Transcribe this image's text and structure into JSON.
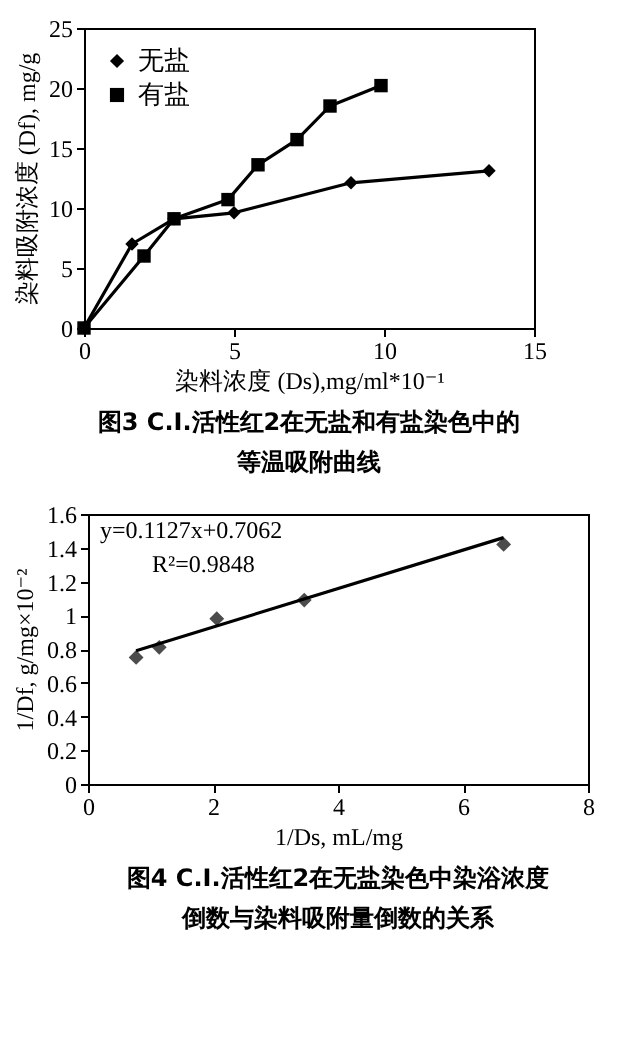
{
  "chart_data": [
    {
      "type": "line",
      "title": "图3 C.I.活性红2在无盐和有盐染色中的等温吸附曲线",
      "xlabel": "染料浓度 (Ds),mg/ml*10⁻¹",
      "ylabel": "染料吸附浓度 (Df), mg/g",
      "xlim": [
        0,
        15
      ],
      "xticks": [
        0,
        5,
        10,
        15
      ],
      "ylim": [
        0,
        25
      ],
      "yticks": [
        0,
        5,
        10,
        15,
        20,
        25
      ],
      "grid": false,
      "legend": "top left",
      "series": [
        {
          "name": "无盐",
          "color": "#000000",
          "marker": "diamond",
          "x": [
            0,
            1.6,
            3.0,
            5.0,
            8.9,
            13.5
          ],
          "values": [
            0,
            7.0,
            9.1,
            9.6,
            12.1,
            13.1
          ]
        },
        {
          "name": "有盐",
          "color": "#000000",
          "marker": "square",
          "x": [
            0,
            2.0,
            3.0,
            4.8,
            5.8,
            7.1,
            8.2,
            9.9
          ],
          "values": [
            0,
            6.0,
            9.1,
            10.7,
            13.6,
            15.7,
            18.5,
            20.2
          ]
        }
      ]
    },
    {
      "type": "scatter",
      "title": "图4 C.I.活性红2在无盐染色中染浴浓度倒数与染料吸附量倒数的关系",
      "xlabel": "1/Ds, mL/mg",
      "ylabel": "1/Df, g/mg×10⁻²",
      "xlim": [
        0,
        8
      ],
      "xticks": [
        0,
        2,
        4,
        6,
        8
      ],
      "ylim": [
        0,
        1.6
      ],
      "yticks": [
        0,
        0.2,
        0.4,
        0.6,
        0.8,
        1,
        1.2,
        1.4,
        1.6
      ],
      "grid": false,
      "annotations": [
        "y=0.1127x+0.7062",
        "R²=0.9848"
      ],
      "series": [
        {
          "color": "#000000",
          "marker": "diamond",
          "x": [
            0.77,
            1.14,
            2.06,
            3.46,
            6.65
          ],
          "values": [
            0.75,
            0.81,
            0.98,
            1.09,
            1.42
          ]
        },
        {
          "type": "line",
          "color": "#000000",
          "marker": "none",
          "x": [
            0.77,
            6.65
          ],
          "values": [
            0.79,
            1.46
          ]
        }
      ]
    }
  ]
}
